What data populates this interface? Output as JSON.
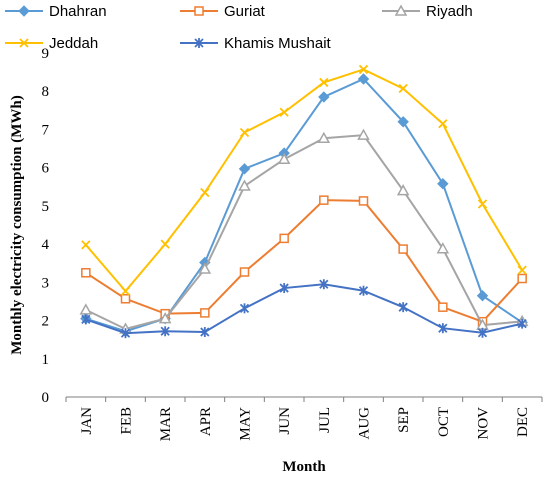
{
  "chart_data": {
    "type": "line",
    "title": "",
    "xlabel": "Month",
    "ylabel": "Monthly electricity consumption (MWh)",
    "categories": [
      "JAN",
      "FEB",
      "MAR",
      "APR",
      "MAY",
      "JUN",
      "JUL",
      "AUG",
      "SEP",
      "OCT",
      "NOV",
      "DEC"
    ],
    "ylim": [
      0,
      9
    ],
    "yticks": [
      "0",
      "1",
      "2",
      "3",
      "4",
      "5",
      "6",
      "7",
      "8",
      "9"
    ],
    "grid": false,
    "legend_position": "top",
    "series": [
      {
        "name": "Dhahran",
        "color": "#5b9bd5",
        "marker": "diamond",
        "values": [
          2.05,
          1.72,
          2.05,
          3.52,
          5.97,
          6.38,
          7.85,
          8.32,
          7.2,
          5.58,
          2.65,
          1.95
        ]
      },
      {
        "name": "Guriat",
        "color": "#ed7d31",
        "marker": "square",
        "values": [
          3.25,
          2.57,
          2.18,
          2.2,
          3.27,
          4.15,
          5.15,
          5.13,
          3.87,
          2.35,
          1.97,
          3.1
        ]
      },
      {
        "name": "Riyadh",
        "color": "#a5a5a5",
        "marker": "triangle",
        "values": [
          2.28,
          1.78,
          2.05,
          3.35,
          5.52,
          6.22,
          6.77,
          6.85,
          5.4,
          3.88,
          1.88,
          1.98
        ]
      },
      {
        "name": "Jeddah",
        "color": "#ffc000",
        "marker": "x",
        "values": [
          3.98,
          2.77,
          4.0,
          5.35,
          6.92,
          7.45,
          8.23,
          8.57,
          8.07,
          7.15,
          5.05,
          3.32
        ]
      },
      {
        "name": "Khamis Mushait",
        "color": "#4472c4",
        "marker": "star",
        "values": [
          2.03,
          1.67,
          1.72,
          1.7,
          2.32,
          2.85,
          2.95,
          2.78,
          2.35,
          1.8,
          1.68,
          1.92
        ]
      }
    ]
  }
}
